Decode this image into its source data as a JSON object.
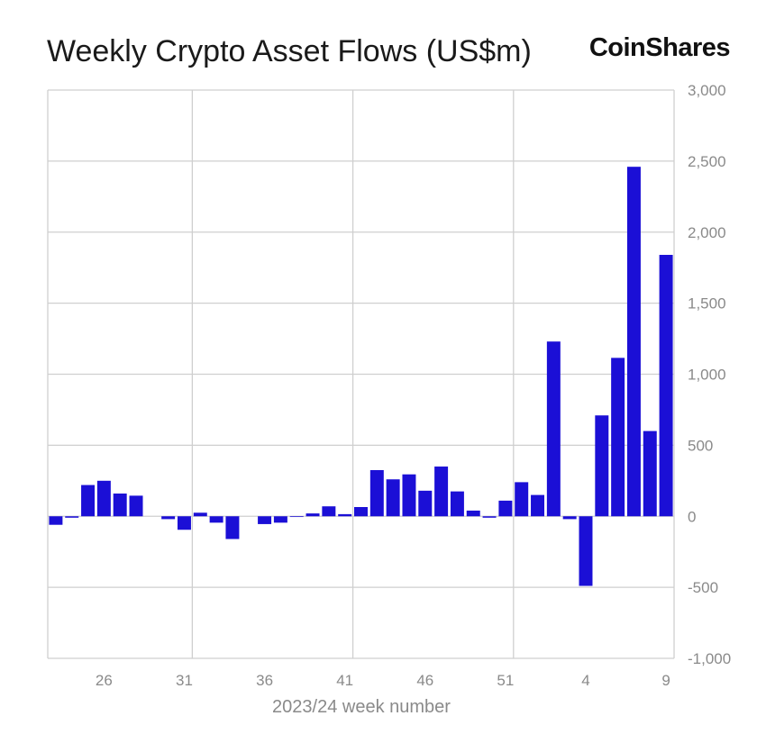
{
  "brand": "CoinShares",
  "chart_data": {
    "type": "bar",
    "title": "Weekly Crypto Asset Flows (US$m)",
    "xlabel": "2023/24 week number",
    "ylabel": "",
    "ylim": [
      -1000,
      3000
    ],
    "yticks": [
      -1000,
      -500,
      0,
      500,
      1000,
      1500,
      2000,
      2500,
      3000
    ],
    "ytick_labels": [
      "-1,000",
      "-500",
      "0",
      "500",
      "1,000",
      "1,500",
      "2,000",
      "2,500",
      "3,000"
    ],
    "xtick_labels": [
      "26",
      "31",
      "36",
      "41",
      "46",
      "51",
      "4",
      "9"
    ],
    "categories": [
      "23",
      "24",
      "25",
      "26",
      "27",
      "28",
      "29",
      "30",
      "31",
      "32",
      "33",
      "34",
      "35",
      "36",
      "37",
      "38",
      "39",
      "40",
      "41",
      "42",
      "43",
      "44",
      "45",
      "46",
      "47",
      "48",
      "49",
      "50",
      "51",
      "52",
      "1",
      "2",
      "3",
      "4",
      "5",
      "6",
      "7",
      "8",
      "9"
    ],
    "values": [
      -60,
      -10,
      220,
      250,
      160,
      145,
      0,
      -20,
      -95,
      25,
      -45,
      -160,
      0,
      -55,
      -45,
      -5,
      20,
      70,
      15,
      65,
      325,
      260,
      295,
      180,
      350,
      175,
      40,
      -10,
      110,
      240,
      150,
      1230,
      -20,
      -490,
      710,
      1115,
      2460,
      600,
      1840
    ],
    "bar_color": "#1b0fd6",
    "grid": true,
    "legend": "none"
  }
}
